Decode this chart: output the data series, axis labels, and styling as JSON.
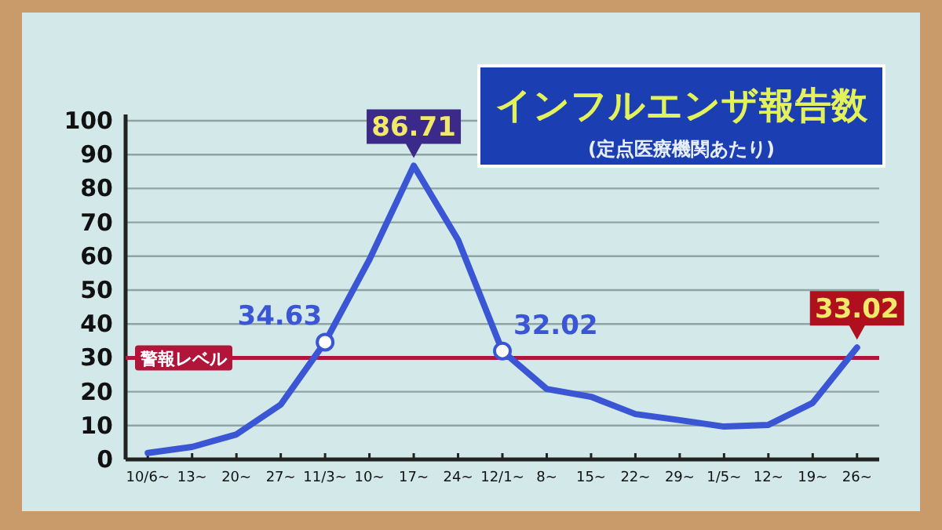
{
  "chart_data": {
    "type": "line",
    "title": "インフルエンザ報告数",
    "subtitle": "(定点医療機関あたり)",
    "categories": [
      "10/6~",
      "13~",
      "20~",
      "27~",
      "11/3~",
      "10~",
      "17~",
      "24~",
      "12/1~",
      "8~",
      "15~",
      "22~",
      "29~",
      "1/5~",
      "12~",
      "19~",
      "26~"
    ],
    "series": [
      {
        "color": "#3a56d4",
        "values": [
          1.9,
          3.7,
          7.4,
          16.2,
          34.63,
          59,
          86.71,
          64.8,
          32.02,
          20.8,
          18.5,
          13.4,
          11.6,
          9.7,
          10.2,
          16.7,
          33.02
        ],
        "value_labels": [
          null,
          null,
          null,
          null,
          "34.63",
          null,
          "86.71",
          null,
          "32.02",
          null,
          null,
          null,
          null,
          null,
          null,
          null,
          "33.02"
        ]
      }
    ],
    "ylim": [
      0,
      100
    ],
    "yticks": [
      0,
      10,
      20,
      30,
      40,
      50,
      60,
      70,
      80,
      90,
      100
    ],
    "grid": "y",
    "ref_lines": [
      {
        "axis": "y",
        "value": 30,
        "label": "警報レベル",
        "color": "#b0163a"
      }
    ]
  }
}
